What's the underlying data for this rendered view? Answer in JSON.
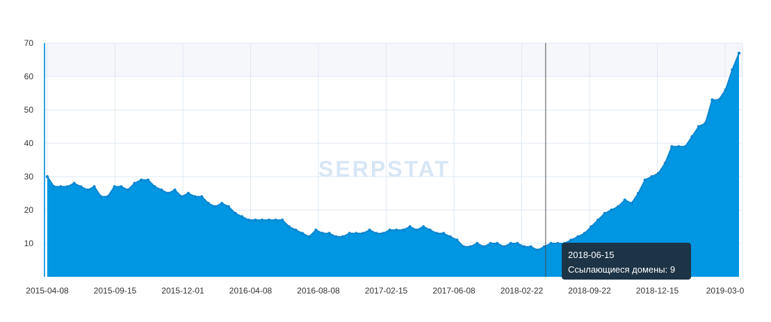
{
  "chart_data": {
    "type": "area",
    "watermark": "SERPSTAT",
    "xlabel": "",
    "ylabel": "",
    "ylim": [
      0,
      70
    ],
    "y_ticks": [
      10,
      20,
      30,
      40,
      50,
      60,
      70
    ],
    "x_tick_labels": [
      "2015-04-08",
      "2015-09-15",
      "2015-12-01",
      "2016-04-08",
      "2016-08-08",
      "2017-02-15",
      "2017-06-08",
      "2018-02-22",
      "2018-09-22",
      "2018-12-15",
      "2019-03-0"
    ],
    "grid": true,
    "colors": {
      "fill": "#0096e2",
      "line": "#0a86d0",
      "grid": "#dde8f3",
      "band": "#f6f7fb",
      "tooltip_bg": "#1d3447"
    },
    "series": [
      {
        "values": [
          30,
          27,
          27,
          27,
          28,
          27,
          26,
          27,
          24,
          24,
          27,
          27,
          26,
          28,
          29,
          29,
          27,
          26,
          25,
          26,
          24,
          25,
          24,
          24,
          22,
          21,
          22,
          21,
          19,
          18,
          17,
          17,
          17,
          17,
          17,
          17,
          15,
          14,
          13,
          12,
          14,
          13,
          13,
          12,
          12,
          13,
          13,
          13,
          14,
          13,
          13,
          14,
          14,
          14,
          15,
          14,
          15,
          14,
          13,
          13,
          12,
          11,
          9,
          9,
          10,
          9,
          10,
          10,
          9,
          10,
          10,
          9,
          9,
          8,
          9,
          10,
          10,
          10,
          11,
          12,
          13,
          15,
          17,
          19,
          20,
          21,
          23,
          22,
          25,
          29,
          30,
          31,
          34,
          39,
          39,
          39,
          42,
          45,
          46,
          53,
          53,
          56,
          62,
          67
        ]
      }
    ],
    "tooltip": {
      "date": "2018-06-15",
      "label": "Ссылающиеся домены",
      "value": 9,
      "text": "Ссылающиеся домены: 9",
      "index": 74
    }
  }
}
